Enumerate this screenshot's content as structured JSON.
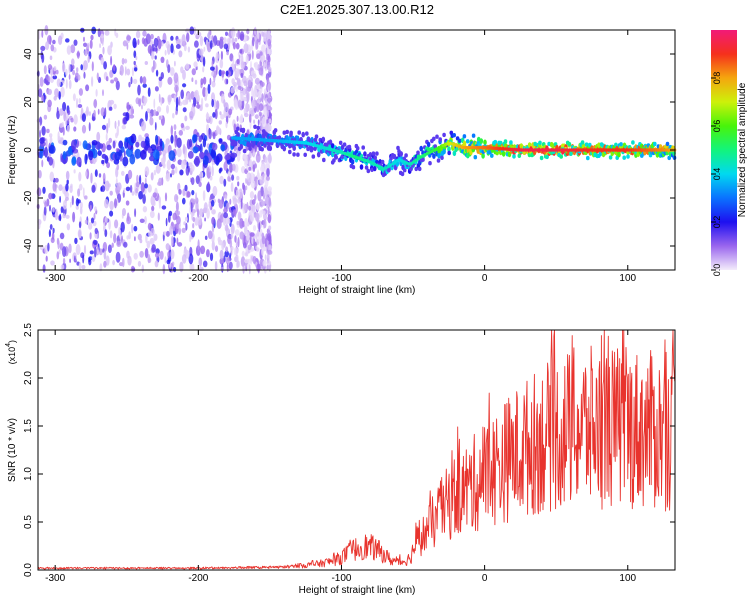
{
  "title": "C2E1.2025.307.13.00.R12",
  "chart_data": [
    {
      "type": "heatmap",
      "xlabel": "Height of straight line (km)",
      "ylabel": "Frequency (Hz)",
      "xlim": [
        -312,
        133
      ],
      "ylim": [
        -50,
        50
      ],
      "xticks": [
        -300,
        -200,
        -100,
        0,
        100
      ],
      "xtick_labels": [
        "-300",
        "-200",
        "-100",
        "0",
        "100"
      ],
      "yticks": [
        -40,
        -20,
        0,
        20,
        40
      ],
      "ytick_labels": [
        "-40",
        "-20",
        "0",
        "20",
        "40"
      ],
      "colorbar": {
        "label": "Normalized spectral amplitude",
        "range": [
          0,
          1
        ],
        "ticks": [
          0.0,
          0.2,
          0.4,
          0.6,
          0.8
        ],
        "tick_labels": [
          "0.0",
          "0.2",
          "0.4",
          "0.6",
          "0.8"
        ]
      },
      "ridge": {
        "name": "dominant frequency trace",
        "height_km": [
          -175,
          -150,
          -125,
          -100,
          -90,
          -80,
          -70,
          -60,
          -52,
          -45,
          -35,
          -25,
          -15,
          0,
          25,
          50,
          75,
          100,
          133
        ],
        "frequency_hz": [
          5,
          4,
          3,
          -1,
          -3,
          -5,
          -8,
          -4,
          -6,
          -3,
          0,
          3,
          1,
          1,
          0,
          0,
          0,
          0,
          0
        ],
        "amplitude": [
          0.35,
          0.35,
          0.4,
          0.45,
          0.5,
          0.45,
          0.45,
          0.4,
          0.45,
          0.5,
          0.55,
          0.7,
          0.8,
          0.85,
          0.95,
          0.95,
          0.9,
          0.9,
          0.8
        ]
      },
      "noise_region_km": [
        -312,
        -150
      ]
    },
    {
      "type": "line",
      "xlabel": "Height of straight line (km)",
      "ylabel": "SNR (10 * v/v)",
      "yscale_label": "(x10",
      "yscale_exponent": "4",
      "scale_close": ")",
      "xlim": [
        -312,
        133
      ],
      "ylim": [
        0,
        2.5
      ],
      "xticks": [
        -300,
        -200,
        -100,
        0,
        100
      ],
      "xtick_labels": [
        "-300",
        "-200",
        "-100",
        "0",
        "100"
      ],
      "yticks": [
        0.0,
        0.5,
        1.0,
        1.5,
        2.0,
        2.5
      ],
      "ytick_labels": [
        "0.0",
        "0.5",
        "1.0",
        "1.5",
        "2.0",
        "2.5"
      ],
      "series_color": "#e8332d",
      "envelope": {
        "x": [
          -312,
          -200,
          -140,
          -130,
          -115,
          -105,
          -100,
          -92,
          -85,
          -78,
          -72,
          -65,
          -58,
          -52,
          -48,
          -40,
          -30,
          -20,
          -10,
          0,
          10,
          20,
          30,
          40,
          50,
          60,
          80,
          100,
          120,
          133
        ],
        "y": [
          0.02,
          0.02,
          0.03,
          0.05,
          0.08,
          0.12,
          0.16,
          0.25,
          0.3,
          0.28,
          0.22,
          0.12,
          0.1,
          0.15,
          0.35,
          0.5,
          0.75,
          0.95,
          1.05,
          1.2,
          1.32,
          1.45,
          1.55,
          1.65,
          1.72,
          1.78,
          1.8,
          1.8,
          1.75,
          1.72
        ]
      }
    }
  ]
}
